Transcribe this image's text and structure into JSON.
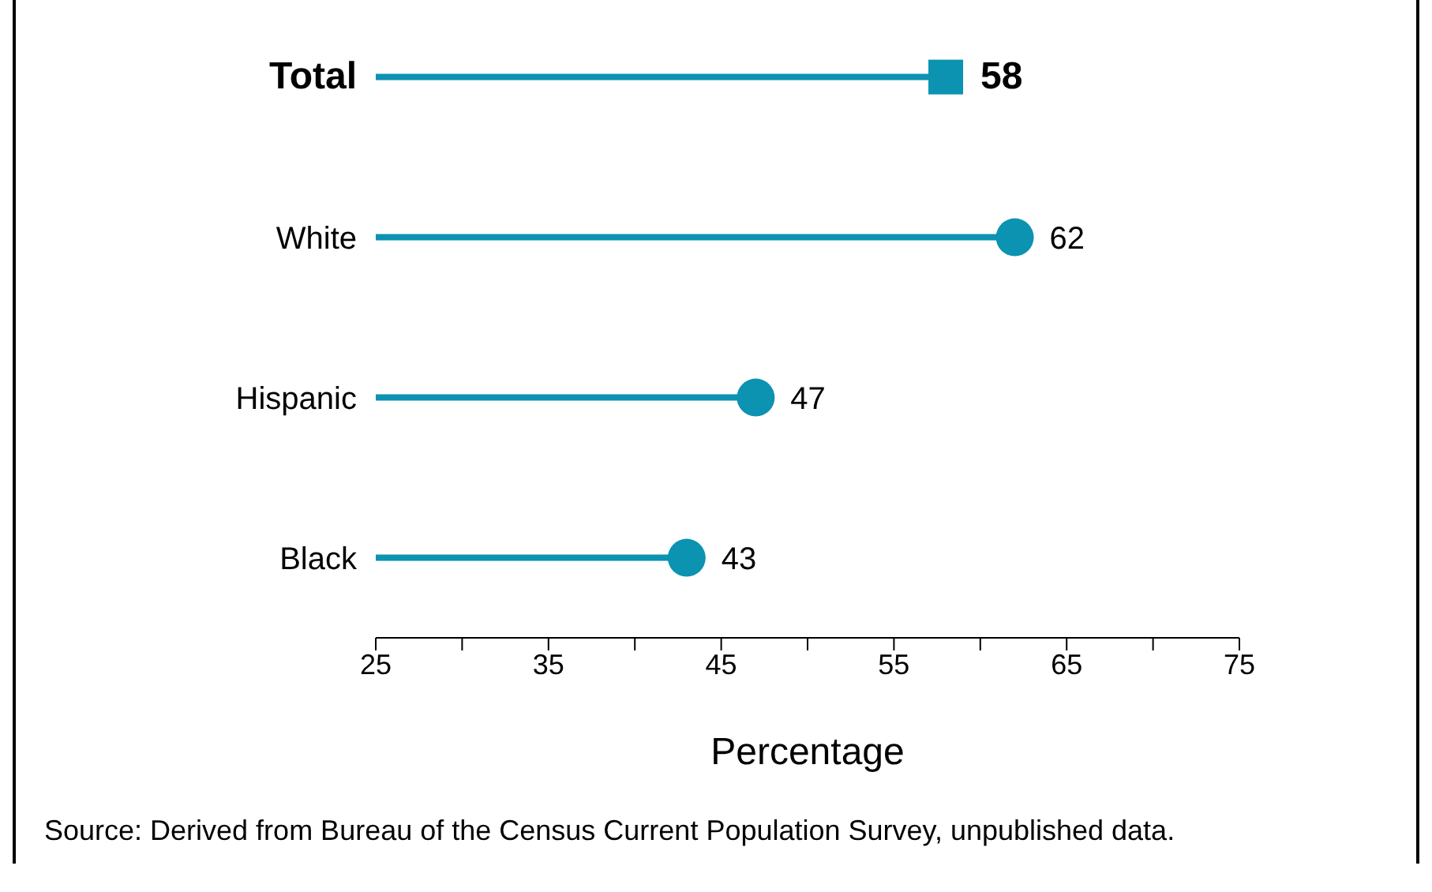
{
  "chart_data": {
    "type": "lollipop",
    "orientation": "horizontal",
    "categories": [
      "Total",
      "White",
      "Hispanic",
      "Black"
    ],
    "series": [
      {
        "color": "#0b93b1",
        "marker": "square",
        "values": [
          58,
          null,
          null,
          null
        ]
      },
      {
        "color": "#0b93b1",
        "marker": "circle",
        "values": [
          null,
          62,
          47,
          43
        ]
      }
    ],
    "xlim": [
      25,
      75
    ],
    "xticks": [
      25,
      {
        "value": 30,
        "label": null
      },
      35,
      {
        "value": 40,
        "label": null
      },
      45,
      {
        "value": 50,
        "label": null
      },
      55,
      {
        "value": 60,
        "label": null
      },
      65,
      {
        "value": 70,
        "label": null
      },
      75
    ],
    "xlabel": "Percentage",
    "data_labels": true,
    "annotations": [
      "Source: Derived from Bureau of the Census Current Population Survey, unpublished data."
    ]
  }
}
